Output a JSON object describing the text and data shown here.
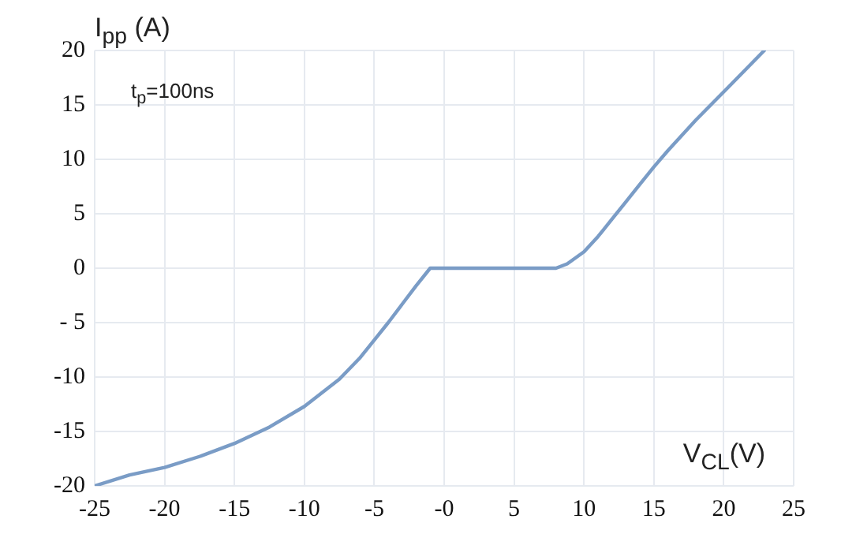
{
  "chart_data": {
    "type": "line",
    "xlabel": "V$_{CL}$(V)",
    "ylabel": "I$_{pp}$ (A)",
    "annotations": [
      "t$_{p}$=100ns"
    ],
    "xlim": [
      -25,
      25
    ],
    "xticks": [
      -25,
      -20,
      -15,
      -10,
      -5,
      {
        "value": 0,
        "label": "-0"
      },
      5,
      10,
      15,
      20,
      25
    ],
    "ylim": [
      -20,
      20
    ],
    "yticks": [
      -20,
      -15,
      -10,
      {
        "value": -5,
        "label": "- 5"
      },
      0,
      5,
      10,
      15,
      20
    ],
    "grid": true,
    "legend": false,
    "marker": "none",
    "line_style": "solid",
    "series": [
      {
        "color": "#7a9cc6",
        "x": [
          -25,
          -22.5,
          -20,
          -17.5,
          -15,
          -12.5,
          -10,
          -7.5,
          -6,
          -5,
          -4,
          -3,
          -2,
          -1,
          2,
          5,
          8,
          8.8,
          10,
          11,
          12,
          13,
          14,
          15,
          16,
          18,
          20.3,
          22.9
        ],
        "values": [
          -20,
          -19,
          -18.3,
          -17.3,
          -16.1,
          -14.6,
          -12.7,
          -10.2,
          -8.2,
          -6.6,
          -5,
          -3.3,
          -1.6,
          0,
          0,
          0,
          0,
          0.4,
          1.5,
          2.9,
          4.5,
          6.1,
          7.7,
          9.3,
          10.8,
          13.6,
          16.6,
          20
        ]
      }
    ]
  }
}
